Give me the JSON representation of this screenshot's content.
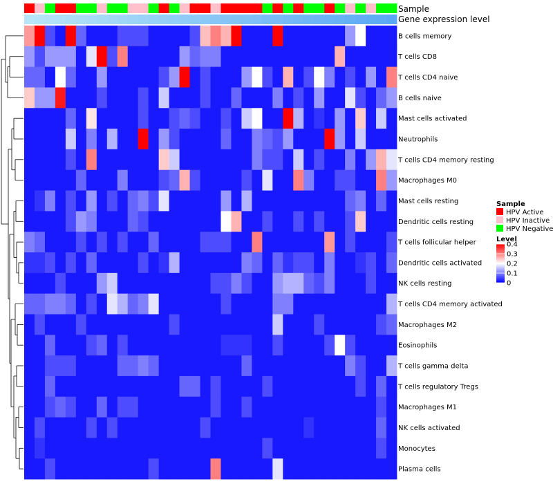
{
  "chart_data": {
    "type": "heatmap",
    "title": "",
    "annotation_tracks": [
      "Sample",
      "Gene expression level"
    ],
    "sample_legend": {
      "title": "Sample",
      "entries": [
        {
          "label": "HPV Active",
          "color": "#ff0000"
        },
        {
          "label": "HPV Inactive",
          "color": "#ffc0cb"
        },
        {
          "label": "HPV Negative",
          "color": "#00ff00"
        }
      ]
    },
    "level_legend": {
      "title": "Level",
      "ticks": [
        "0.4",
        "0.3",
        "0.2",
        "0.1",
        "0"
      ],
      "tick_values": [
        0.4,
        0.3,
        0.2,
        0.1,
        0
      ],
      "min": 0,
      "max": 0.4,
      "colors": {
        "low": "#0000ff",
        "mid": "#ffffff",
        "high": "#ff0000"
      }
    },
    "samples": [
      "A",
      "I",
      "N",
      "A",
      "A",
      "N",
      "N",
      "I",
      "N",
      "N",
      "I",
      "I",
      "N",
      "A",
      "N",
      "I",
      "A",
      "A",
      "I",
      "A",
      "A",
      "A",
      "A",
      "N",
      "A",
      "N",
      "A",
      "N",
      "N",
      "A",
      "N",
      "I",
      "N",
      "I",
      "N",
      "N"
    ],
    "expression_start": "#b8e6f8",
    "expression_end": "#5aa8f5",
    "rows": [
      "B cells memory",
      "T cells CD8",
      "T cells CD4 naive",
      "B cells naive",
      "Mast cells activated",
      "Neutrophils",
      "T cells CD4 memory resting",
      "Macrophages M0",
      "Mast cells resting",
      "Dendritic cells resting",
      "T cells follicular helper",
      "Dendritic cells activated",
      "NK cells resting",
      "T cells CD4 memory activated",
      "Macrophages M2",
      "Eosinophils",
      "T cells gamma delta",
      "T cells regulatory  Tregs",
      "Macrophages M1",
      "NK cells activated",
      "Monocytes",
      "Plasma cells"
    ],
    "values": [
      [
        0.28,
        0.4,
        0.06,
        0.02,
        0.4,
        0.08,
        0.02,
        0.02,
        0.02,
        0.06,
        0.06,
        0.06,
        0.02,
        0.02,
        0.02,
        0.02,
        0.06,
        0.25,
        0.3,
        0.26,
        0.4,
        0.02,
        0.02,
        0.02,
        0.4,
        0.02,
        0.02,
        0.02,
        0.02,
        0.02,
        0.02,
        0.12,
        0.2,
        0.02,
        0.02,
        0.02
      ],
      [
        0.12,
        0.06,
        0.12,
        0.12,
        0.12,
        0.02,
        0.18,
        0.4,
        0.06,
        0.3,
        0.02,
        0.02,
        0.02,
        0.02,
        0.02,
        0.12,
        0.08,
        0.1,
        0.1,
        0.02,
        0.02,
        0.02,
        0.02,
        0.02,
        0.02,
        0.02,
        0.02,
        0.02,
        0.02,
        0.02,
        0.26,
        0.02,
        0.02,
        0.02,
        0.02,
        0.02
      ],
      [
        0.08,
        0.08,
        0.02,
        0.2,
        0.08,
        0.02,
        0.02,
        0.12,
        0.02,
        0.02,
        0.02,
        0.02,
        0.02,
        0.06,
        0.12,
        0.4,
        0.02,
        0.06,
        0.02,
        0.02,
        0.02,
        0.12,
        0.2,
        0.06,
        0.02,
        0.26,
        0.02,
        0.06,
        0.2,
        0.1,
        0.02,
        0.06,
        0.02,
        0.12,
        0.02,
        0.3
      ],
      [
        0.24,
        0.12,
        0.12,
        0.38,
        0.02,
        0.02,
        0.02,
        0.06,
        0.02,
        0.02,
        0.02,
        0.06,
        0.02,
        0.16,
        0.02,
        0.02,
        0.02,
        0.06,
        0.02,
        0.02,
        0.08,
        0.02,
        0.02,
        0.02,
        0.1,
        0.02,
        0.06,
        0.02,
        0.12,
        0.02,
        0.02,
        0.18,
        0.06,
        0.02,
        0.08,
        0.12
      ],
      [
        0.02,
        0.02,
        0.02,
        0.02,
        0.08,
        0.02,
        0.22,
        0.02,
        0.02,
        0.02,
        0.02,
        0.06,
        0.02,
        0.02,
        0.06,
        0.08,
        0.06,
        0.02,
        0.02,
        0.06,
        0.02,
        0.16,
        0.2,
        0.02,
        0.02,
        0.4,
        0.14,
        0.02,
        0.04,
        0.02,
        0.12,
        0.02,
        0.24,
        0.02,
        0.16,
        0.02
      ],
      [
        0.02,
        0.02,
        0.02,
        0.02,
        0.16,
        0.02,
        0.1,
        0.02,
        0.14,
        0.02,
        0.02,
        0.4,
        0.02,
        0.12,
        0.06,
        0.02,
        0.02,
        0.02,
        0.02,
        0.08,
        0.02,
        0.02,
        0.1,
        0.08,
        0.06,
        0.12,
        0.02,
        0.02,
        0.02,
        0.4,
        0.12,
        0.02,
        0.16,
        0.02,
        0.02,
        0.02
      ],
      [
        0.02,
        0.02,
        0.02,
        0.02,
        0.06,
        0.02,
        0.3,
        0.02,
        0.02,
        0.02,
        0.02,
        0.02,
        0.02,
        0.24,
        0.16,
        0.02,
        0.02,
        0.02,
        0.02,
        0.02,
        0.02,
        0.02,
        0.1,
        0.06,
        0.06,
        0.02,
        0.16,
        0.02,
        0.06,
        0.02,
        0.02,
        0.1,
        0.02,
        0.12,
        0.26,
        0.18
      ],
      [
        0.02,
        0.02,
        0.02,
        0.02,
        0.02,
        0.08,
        0.02,
        0.02,
        0.02,
        0.1,
        0.02,
        0.02,
        0.02,
        0.06,
        0.08,
        0.26,
        0.06,
        0.02,
        0.02,
        0.02,
        0.02,
        0.06,
        0.02,
        0.18,
        0.02,
        0.02,
        0.3,
        0.1,
        0.02,
        0.02,
        0.06,
        0.06,
        0.02,
        0.02,
        0.3,
        0.12
      ],
      [
        0.02,
        0.04,
        0.1,
        0.02,
        0.06,
        0.02,
        0.12,
        0.02,
        0.06,
        0.02,
        0.08,
        0.1,
        0.06,
        0.18,
        0.02,
        0.02,
        0.02,
        0.02,
        0.02,
        0.12,
        0.02,
        0.14,
        0.02,
        0.02,
        0.02,
        0.02,
        0.02,
        0.02,
        0.02,
        0.02,
        0.02,
        0.08,
        0.1,
        0.02,
        0.08,
        0.02
      ],
      [
        0.02,
        0.02,
        0.02,
        0.02,
        0.06,
        0.12,
        0.1,
        0.02,
        0.02,
        0.02,
        0.08,
        0.06,
        0.02,
        0.02,
        0.02,
        0.02,
        0.02,
        0.02,
        0.02,
        0.2,
        0.26,
        0.02,
        0.02,
        0.06,
        0.02,
        0.02,
        0.06,
        0.02,
        0.06,
        0.02,
        0.02,
        0.06,
        0.24,
        0.02,
        0.02,
        0.02
      ],
      [
        0.1,
        0.08,
        0.02,
        0.02,
        0.02,
        0.06,
        0.02,
        0.06,
        0.02,
        0.06,
        0.02,
        0.02,
        0.08,
        0.02,
        0.02,
        0.02,
        0.02,
        0.06,
        0.06,
        0.06,
        0.02,
        0.02,
        0.3,
        0.02,
        0.02,
        0.02,
        0.02,
        0.02,
        0.02,
        0.28,
        0.02,
        0.06,
        0.02,
        0.02,
        0.02,
        0.06
      ],
      [
        0.04,
        0.04,
        0.06,
        0.02,
        0.06,
        0.02,
        0.08,
        0.02,
        0.02,
        0.02,
        0.02,
        0.06,
        0.02,
        0.04,
        0.14,
        0.02,
        0.02,
        0.02,
        0.02,
        0.02,
        0.02,
        0.1,
        0.08,
        0.02,
        0.08,
        0.04,
        0.06,
        0.06,
        0.02,
        0.1,
        0.02,
        0.02,
        0.04,
        0.06,
        0.02,
        0.08
      ],
      [
        0.02,
        0.02,
        0.02,
        0.06,
        0.02,
        0.02,
        0.02,
        0.12,
        0.16,
        0.02,
        0.02,
        0.02,
        0.02,
        0.02,
        0.02,
        0.02,
        0.02,
        0.02,
        0.06,
        0.06,
        0.1,
        0.06,
        0.02,
        0.02,
        0.12,
        0.14,
        0.14,
        0.08,
        0.06,
        0.1,
        0.02,
        0.02,
        0.02,
        0.06,
        0.02,
        0.02
      ],
      [
        0.08,
        0.08,
        0.1,
        0.1,
        0.08,
        0.02,
        0.06,
        0.02,
        0.18,
        0.14,
        0.08,
        0.1,
        0.18,
        0.02,
        0.02,
        0.02,
        0.02,
        0.02,
        0.02,
        0.06,
        0.02,
        0.02,
        0.02,
        0.02,
        0.1,
        0.1,
        0.02,
        0.02,
        0.02,
        0.02,
        0.02,
        0.02,
        0.02,
        0.02,
        0.02,
        0.14
      ],
      [
        0.02,
        0.06,
        0.02,
        0.02,
        0.02,
        0.06,
        0.02,
        0.02,
        0.02,
        0.02,
        0.02,
        0.02,
        0.02,
        0.02,
        0.06,
        0.02,
        0.02,
        0.02,
        0.02,
        0.02,
        0.02,
        0.02,
        0.02,
        0.02,
        0.16,
        0.02,
        0.02,
        0.02,
        0.06,
        0.02,
        0.02,
        0.02,
        0.02,
        0.02,
        0.06,
        0.08
      ],
      [
        0.02,
        0.02,
        0.08,
        0.02,
        0.02,
        0.02,
        0.06,
        0.08,
        0.02,
        0.06,
        0.02,
        0.02,
        0.02,
        0.02,
        0.02,
        0.02,
        0.02,
        0.02,
        0.02,
        0.04,
        0.04,
        0.04,
        0.02,
        0.02,
        0.06,
        0.02,
        0.02,
        0.02,
        0.02,
        0.06,
        0.2,
        0.06,
        0.02,
        0.02,
        0.02,
        0.02
      ],
      [
        0.02,
        0.02,
        0.06,
        0.06,
        0.06,
        0.02,
        0.02,
        0.02,
        0.02,
        0.08,
        0.08,
        0.1,
        0.08,
        0.02,
        0.02,
        0.02,
        0.02,
        0.02,
        0.02,
        0.02,
        0.02,
        0.08,
        0.02,
        0.02,
        0.02,
        0.02,
        0.02,
        0.02,
        0.02,
        0.02,
        0.02,
        0.1,
        0.06,
        0.02,
        0.02,
        0.14
      ],
      [
        0.02,
        0.02,
        0.08,
        0.02,
        0.02,
        0.02,
        0.02,
        0.02,
        0.02,
        0.02,
        0.02,
        0.02,
        0.02,
        0.02,
        0.02,
        0.08,
        0.08,
        0.02,
        0.06,
        0.02,
        0.02,
        0.02,
        0.02,
        0.06,
        0.02,
        0.02,
        0.02,
        0.02,
        0.02,
        0.02,
        0.02,
        0.02,
        0.06,
        0.02,
        0.08,
        0.02
      ],
      [
        0.02,
        0.02,
        0.06,
        0.08,
        0.06,
        0.02,
        0.02,
        0.08,
        0.02,
        0.06,
        0.06,
        0.02,
        0.02,
        0.02,
        0.02,
        0.02,
        0.02,
        0.02,
        0.06,
        0.02,
        0.02,
        0.06,
        0.02,
        0.02,
        0.02,
        0.02,
        0.02,
        0.02,
        0.02,
        0.02,
        0.02,
        0.02,
        0.02,
        0.02,
        0.06,
        0.02
      ],
      [
        0.02,
        0.06,
        0.02,
        0.02,
        0.02,
        0.02,
        0.06,
        0.02,
        0.06,
        0.02,
        0.02,
        0.02,
        0.02,
        0.02,
        0.02,
        0.02,
        0.02,
        0.06,
        0.02,
        0.02,
        0.02,
        0.02,
        0.02,
        0.02,
        0.02,
        0.02,
        0.02,
        0.04,
        0.02,
        0.02,
        0.02,
        0.02,
        0.02,
        0.02,
        0.08,
        0.02
      ],
      [
        0.02,
        0.04,
        0.02,
        0.02,
        0.02,
        0.02,
        0.02,
        0.02,
        0.02,
        0.02,
        0.02,
        0.02,
        0.02,
        0.02,
        0.02,
        0.02,
        0.02,
        0.02,
        0.02,
        0.02,
        0.02,
        0.02,
        0.02,
        0.06,
        0.02,
        0.02,
        0.02,
        0.02,
        0.02,
        0.02,
        0.02,
        0.02,
        0.02,
        0.02,
        0.06,
        0.02
      ],
      [
        0.02,
        0.02,
        0.06,
        0.02,
        0.02,
        0.02,
        0.02,
        0.02,
        0.02,
        0.02,
        0.02,
        0.02,
        0.06,
        0.02,
        0.02,
        0.02,
        0.02,
        0.02,
        0.3,
        0.02,
        0.02,
        0.02,
        0.02,
        0.02,
        0.18,
        0.02,
        0.02,
        0.02,
        0.02,
        0.02,
        0.02,
        0.02,
        0.02,
        0.02,
        0.02,
        0.02
      ]
    ]
  }
}
